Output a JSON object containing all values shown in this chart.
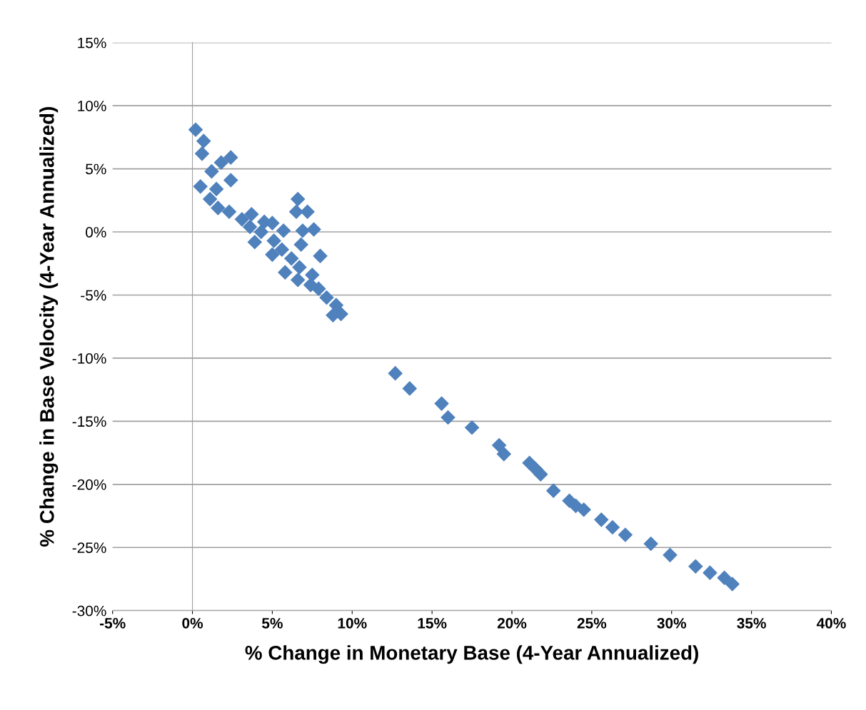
{
  "chart_data": {
    "type": "scatter",
    "xlabel": "% Change in Monetary Base (4-Year Annualized)",
    "ylabel": "% Change in Base Velocity (4-Year Annualized)",
    "xlim": [
      -5,
      40
    ],
    "xticks": [
      {
        "value": -5,
        "label": "-5%"
      },
      {
        "value": 0,
        "label": "0%"
      },
      {
        "value": 5,
        "label": "5%"
      },
      {
        "value": 10,
        "label": "10%"
      },
      {
        "value": 15,
        "label": "15%"
      },
      {
        "value": 20,
        "label": "20%"
      },
      {
        "value": 25,
        "label": "25%"
      },
      {
        "value": 30,
        "label": "30%"
      },
      {
        "value": 35,
        "label": "35%"
      },
      {
        "value": 40,
        "label": "40%"
      }
    ],
    "ylim": [
      -30,
      15
    ],
    "yticks": [
      {
        "value": -30,
        "label": "-30%"
      },
      {
        "value": -25,
        "label": "-25%"
      },
      {
        "value": -20,
        "label": "-20%"
      },
      {
        "value": -15,
        "label": "-15%"
      },
      {
        "value": -10,
        "label": "-10%"
      },
      {
        "value": -5,
        "label": "-5%"
      },
      {
        "value": 0,
        "label": "0%"
      },
      {
        "value": 5,
        "label": "5%"
      },
      {
        "value": 10,
        "label": "10%"
      },
      {
        "value": 15,
        "label": "15%"
      }
    ],
    "grid": "y",
    "marker": "diamond",
    "series": [
      {
        "color": "#4f81bd",
        "x": [
          0.2,
          0.7,
          0.6,
          1.2,
          0.5,
          1.1,
          1.5,
          1.8,
          2.4,
          2.4,
          1.6,
          2.3,
          3.1,
          3.7,
          4.5,
          4.3,
          5.1,
          5.6,
          6.2,
          6.7,
          6.8,
          6.9,
          6.5,
          6.6,
          7.2,
          7.6,
          8.0,
          7.5,
          7.9,
          8.4,
          9.0,
          9.3,
          8.8,
          5.0,
          5.7,
          3.9,
          5.0,
          5.8,
          6.6,
          7.4,
          3.6,
          12.7,
          13.6,
          15.6,
          16.0,
          17.5,
          19.2,
          19.5,
          21.1,
          21.8,
          22.6,
          23.6,
          24.5,
          25.6,
          27.1,
          28.7,
          29.9,
          31.5,
          32.4,
          33.3,
          33.8,
          21.5,
          24.0,
          26.3
        ],
        "values": [
          8.1,
          7.2,
          6.2,
          4.8,
          3.6,
          2.6,
          3.4,
          5.5,
          5.9,
          4.1,
          1.9,
          1.6,
          1.0,
          1.4,
          0.8,
          0.0,
          -0.7,
          -1.4,
          -2.1,
          -2.8,
          -1.0,
          0.1,
          1.6,
          2.6,
          1.6,
          0.2,
          -1.9,
          -3.4,
          -4.5,
          -5.2,
          -5.8,
          -6.5,
          -6.6,
          0.7,
          0.1,
          -0.8,
          -1.8,
          -3.2,
          -3.8,
          -4.2,
          0.4,
          -11.2,
          -12.4,
          -13.6,
          -14.7,
          -15.5,
          -16.9,
          -17.6,
          -18.3,
          -19.2,
          -20.5,
          -21.3,
          -22.0,
          -22.8,
          -24.0,
          -24.7,
          -25.6,
          -26.5,
          -27.0,
          -27.4,
          -27.9,
          -18.8,
          -21.7,
          -23.4
        ]
      }
    ]
  }
}
